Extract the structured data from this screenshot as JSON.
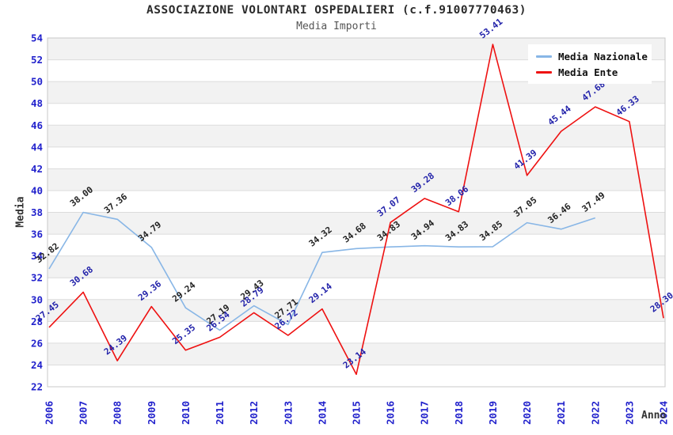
{
  "chart_data": {
    "type": "line",
    "title": "ASSOCIAZIONE VOLONTARI OSPEDALIERI (c.f.91007770463)",
    "subtitle": "Media Importi",
    "xlabel": "Anno",
    "ylabel": "Media",
    "x": [
      2006,
      2007,
      2008,
      2009,
      2010,
      2011,
      2012,
      2013,
      2014,
      2015,
      2016,
      2017,
      2018,
      2019,
      2020,
      2021,
      2022,
      2023,
      2024
    ],
    "series": [
      {
        "name": "Media Nazionale",
        "color": "#88B6E6",
        "label_color": "#222222",
        "values": [
          32.82,
          38.0,
          37.36,
          34.79,
          29.24,
          27.19,
          29.43,
          27.71,
          34.32,
          34.68,
          34.83,
          34.94,
          34.83,
          34.85,
          37.05,
          36.46,
          37.49,
          null,
          null
        ]
      },
      {
        "name": "Media Ente",
        "color": "#EE1111",
        "label_color": "#2222AA",
        "values": [
          27.45,
          30.68,
          24.39,
          29.36,
          25.35,
          26.54,
          28.79,
          26.72,
          29.14,
          23.14,
          37.07,
          39.28,
          38.06,
          53.41,
          41.39,
          45.44,
          47.68,
          46.33,
          28.3
        ]
      }
    ],
    "ylim": [
      22,
      54
    ],
    "yticks": [
      22,
      24,
      26,
      28,
      30,
      32,
      34,
      36,
      38,
      40,
      42,
      44,
      46,
      48,
      50,
      52,
      54
    ],
    "grid": "horizontal, alternating shaded bands every 2 units",
    "legend_position": "top-right"
  },
  "colors": {
    "band_fill": "#f2f2f2",
    "gridline": "#dcdcdc",
    "plot_border": "#c8c8c8",
    "tick_label": "#2222CC",
    "title": "#2b2b2b",
    "subtitle": "#555555"
  }
}
